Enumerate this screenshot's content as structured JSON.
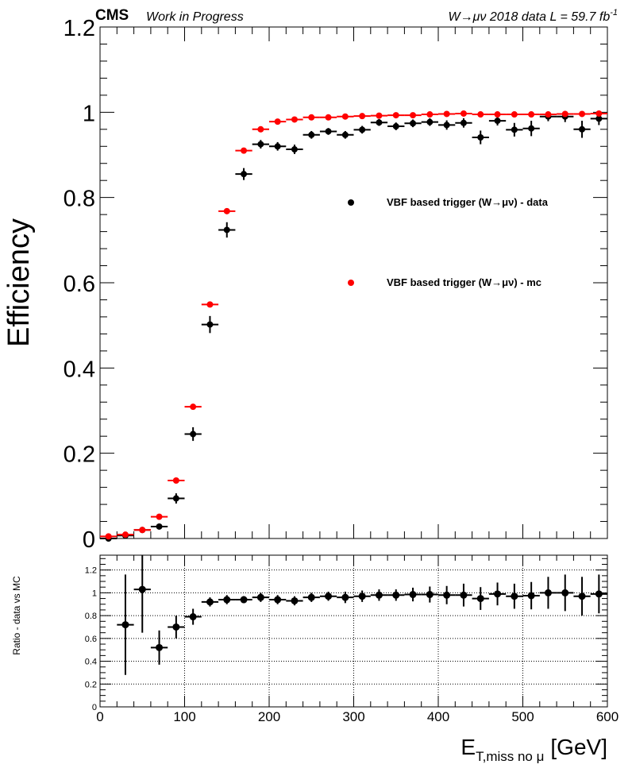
{
  "header": {
    "experiment": "CMS",
    "status": "Work in Progress",
    "dataset": "W→μν 2018 data L = 59.7 fb",
    "lumi_exponent": "-1"
  },
  "chart_data": [
    {
      "type": "scatter",
      "panel": "efficiency",
      "ylabel": "Efficiency",
      "xlim": [
        0,
        600
      ],
      "ylim": [
        0,
        1.2
      ],
      "x_bin_half_width": 10,
      "y_ticks": [
        "0",
        "0.2",
        "0.4",
        "0.6",
        "0.8",
        "1",
        "1.2"
      ],
      "y_tick_values": [
        0,
        0.2,
        0.4,
        0.6,
        0.8,
        1.0,
        1.2
      ],
      "legend_position": "center-right",
      "x": [
        10,
        30,
        50,
        70,
        90,
        110,
        130,
        150,
        170,
        190,
        210,
        230,
        250,
        270,
        290,
        310,
        330,
        350,
        370,
        390,
        410,
        430,
        450,
        470,
        490,
        510,
        530,
        550,
        570,
        590
      ],
      "series": [
        {
          "name": "VBF based trigger (W→μν) - data",
          "color": "#000000",
          "values": [
            0.0,
            0.007,
            0.02,
            0.028,
            0.094,
            0.245,
            0.502,
            0.724,
            0.855,
            0.925,
            0.92,
            0.913,
            0.947,
            0.955,
            0.947,
            0.959,
            0.976,
            0.967,
            0.974,
            0.977,
            0.97,
            0.975,
            0.941,
            0.98,
            0.959,
            0.962,
            0.99,
            0.99,
            0.96,
            0.985
          ],
          "errors": [
            0.003,
            0.004,
            0.006,
            0.006,
            0.012,
            0.016,
            0.02,
            0.018,
            0.014,
            0.01,
            0.01,
            0.011,
            0.009,
            0.008,
            0.009,
            0.009,
            0.008,
            0.009,
            0.009,
            0.009,
            0.011,
            0.011,
            0.016,
            0.011,
            0.016,
            0.018,
            0.011,
            0.013,
            0.02,
            0.015
          ]
        },
        {
          "name": "VBF based trigger (W→μν) - mc",
          "color": "#ff0000",
          "values": [
            0.005,
            0.009,
            0.02,
            0.051,
            0.136,
            0.309,
            0.549,
            0.768,
            0.91,
            0.96,
            0.978,
            0.983,
            0.988,
            0.988,
            0.99,
            0.991,
            0.992,
            0.993,
            0.993,
            0.995,
            0.996,
            0.997,
            0.995,
            0.995,
            0.995,
            0.995,
            0.995,
            0.996,
            0.996,
            0.997
          ],
          "errors": [
            0.001,
            0.001,
            0.002,
            0.002,
            0.003,
            0.004,
            0.004,
            0.003,
            0.003,
            0.002,
            0.002,
            0.002,
            0.002,
            0.002,
            0.002,
            0.002,
            0.002,
            0.002,
            0.002,
            0.002,
            0.002,
            0.002,
            0.002,
            0.002,
            0.002,
            0.002,
            0.002,
            0.002,
            0.002,
            0.002
          ]
        }
      ]
    },
    {
      "type": "scatter",
      "panel": "ratio",
      "ylabel": "Ratio - data vs MC",
      "xlabel_main": "E",
      "xlabel_sub": "T,miss no μ",
      "xlabel_unit": "[GeV]",
      "xlim": [
        0,
        600
      ],
      "ylim": [
        0,
        1.33
      ],
      "x_ticks": [
        "0",
        "100",
        "200",
        "300",
        "400",
        "500",
        "600"
      ],
      "x_tick_values": [
        0,
        100,
        200,
        300,
        400,
        500,
        600
      ],
      "y_ticks": [
        "0",
        "0.2",
        "0.4",
        "0.6",
        "0.8",
        "1",
        "1.2"
      ],
      "y_tick_values": [
        0,
        0.2,
        0.4,
        0.6,
        0.8,
        1.0,
        1.2
      ],
      "grid": true,
      "x": [
        30,
        50,
        70,
        90,
        110,
        130,
        150,
        170,
        190,
        210,
        230,
        250,
        270,
        290,
        310,
        330,
        350,
        370,
        390,
        410,
        430,
        450,
        470,
        490,
        510,
        530,
        550,
        570,
        590
      ],
      "series": [
        {
          "color": "#000000",
          "values": [
            0.72,
            1.03,
            0.52,
            0.7,
            0.79,
            0.92,
            0.94,
            0.94,
            0.96,
            0.94,
            0.93,
            0.96,
            0.97,
            0.96,
            0.97,
            0.98,
            0.98,
            0.985,
            0.985,
            0.98,
            0.98,
            0.95,
            0.99,
            0.97,
            0.975,
            1.0,
            1.0,
            0.97,
            0.99
          ],
          "errors": [
            0.44,
            0.38,
            0.15,
            0.1,
            0.07,
            0.04,
            0.04,
            0.03,
            0.04,
            0.04,
            0.04,
            0.04,
            0.04,
            0.05,
            0.05,
            0.05,
            0.05,
            0.06,
            0.07,
            0.08,
            0.1,
            0.1,
            0.1,
            0.11,
            0.12,
            0.14,
            0.16,
            0.17,
            0.17
          ]
        }
      ]
    }
  ]
}
